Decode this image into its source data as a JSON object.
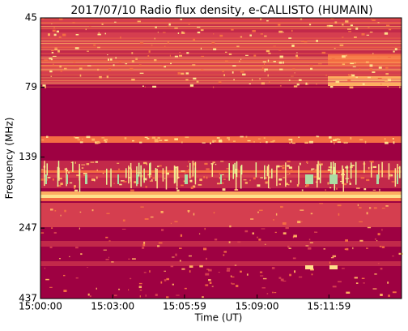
{
  "chart_data": {
    "type": "spectrogram",
    "title": "2017/07/10  Radio flux density, e-CALLISTO (HUMAIN)",
    "xlabel": "Time (UT)",
    "ylabel": "Frequency (MHz)",
    "xlim": [
      "15:00:00",
      "15:15:00"
    ],
    "xticks": [
      "15:00:00",
      "15:03:00",
      "15:05:59",
      "15:09:00",
      "15:11:59"
    ],
    "ylim": [
      437,
      45
    ],
    "ylog": true,
    "yticks": [
      45,
      79,
      139,
      247,
      437
    ]
  }
}
